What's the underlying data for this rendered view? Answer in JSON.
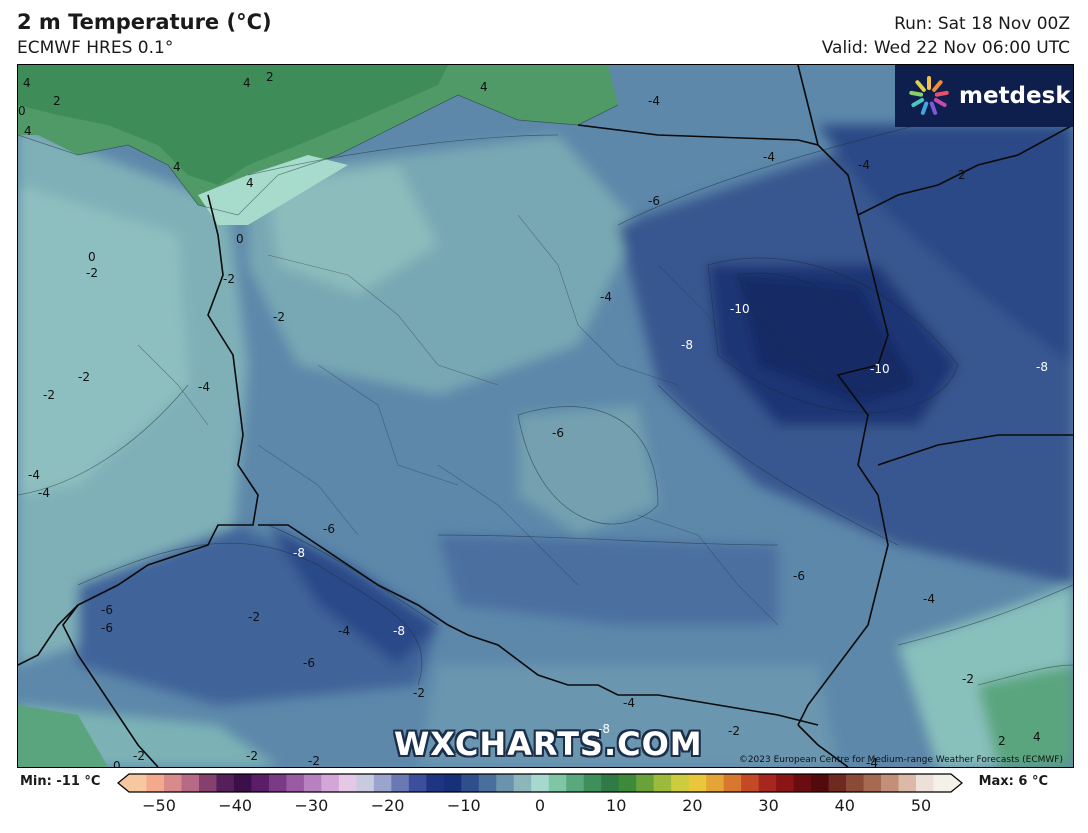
{
  "header": {
    "title": "2 m Temperature (°C)",
    "model": "ECMWF HRES 0.1°",
    "run": "Run: Sat 18 Nov 00Z",
    "valid": "Valid: Wed 22 Nov 06:00 UTC"
  },
  "logo": {
    "text": "metdesk"
  },
  "watermark": "WXCHARTS.COM",
  "copyright": "©2023 European Centre for Medium-range Weather Forecasts (ECMWF)",
  "legend": {
    "min_label": "Min: -11 °C",
    "max_label": "Max: 6 °C",
    "ticks": [
      "−50",
      "−40",
      "−30",
      "−20",
      "−10",
      "0",
      "10",
      "20",
      "30",
      "40",
      "50"
    ],
    "range": [
      -50,
      50
    ],
    "colors": [
      "#f7c8a0",
      "#f3a98e",
      "#d98a8c",
      "#b66a86",
      "#86406e",
      "#55205a",
      "#3a0f4a",
      "#5a1e68",
      "#7a3a86",
      "#9a5aa4",
      "#b880c0",
      "#d2a6d6",
      "#e4c8e6",
      "#c9c9e0",
      "#9aa4cc",
      "#6a78b4",
      "#3d4f9c",
      "#1f3584",
      "#16307a",
      "#2e4f8c",
      "#4a6f9c",
      "#6a93ac",
      "#8cb6bc",
      "#a6d8d0",
      "#7ec6a6",
      "#5aa87e",
      "#3f8f5c",
      "#2f7a46",
      "#3e8a3a",
      "#6aa23a",
      "#9cba3c",
      "#cccc3e",
      "#e8c83a",
      "#e4a436",
      "#d8782e",
      "#c44a26",
      "#a82620",
      "#8a1416",
      "#6a0c10",
      "#520a0c",
      "#6e2a20",
      "#8a4a36",
      "#a66a50",
      "#c2907a",
      "#dcb8a8",
      "#ece0d8",
      "#f6f0ea"
    ]
  },
  "map": {
    "contour_labels": [
      {
        "t": "4"
      },
      {
        "t": "2"
      },
      {
        "t": "4"
      },
      {
        "t": "4"
      },
      {
        "t": "0"
      },
      {
        "t": "2"
      },
      {
        "t": "4"
      },
      {
        "t": "4"
      },
      {
        "t": "4"
      },
      {
        "t": "-4"
      },
      {
        "t": "-4"
      },
      {
        "t": "-4"
      },
      {
        "t": "-6"
      },
      {
        "t": "0"
      },
      {
        "t": "-2"
      },
      {
        "t": "0"
      },
      {
        "t": "-2"
      },
      {
        "t": "2"
      },
      {
        "t": "-2"
      },
      {
        "t": "-4"
      },
      {
        "t": "-10"
      },
      {
        "t": "-8"
      },
      {
        "t": "-10"
      },
      {
        "t": "-8"
      },
      {
        "t": "-2"
      },
      {
        "t": "-2"
      },
      {
        "t": "-4"
      },
      {
        "t": "-6"
      },
      {
        "t": "-4"
      },
      {
        "t": "-4"
      },
      {
        "t": "-6"
      },
      {
        "t": "-8"
      },
      {
        "t": "-6"
      },
      {
        "t": "-6"
      },
      {
        "t": "-2"
      },
      {
        "t": "-4"
      },
      {
        "t": "-8"
      },
      {
        "t": "-6"
      },
      {
        "t": "-4"
      },
      {
        "t": "-2"
      },
      {
        "t": "-2"
      },
      {
        "t": "-4"
      },
      {
        "t": "-8"
      },
      {
        "t": "-2"
      },
      {
        "t": "-2"
      },
      {
        "t": "0"
      },
      {
        "t": "-2"
      },
      {
        "t": "-2"
      },
      {
        "t": "2"
      },
      {
        "t": "4"
      },
      {
        "t": "-4"
      },
      {
        "t": "-6"
      }
    ]
  }
}
